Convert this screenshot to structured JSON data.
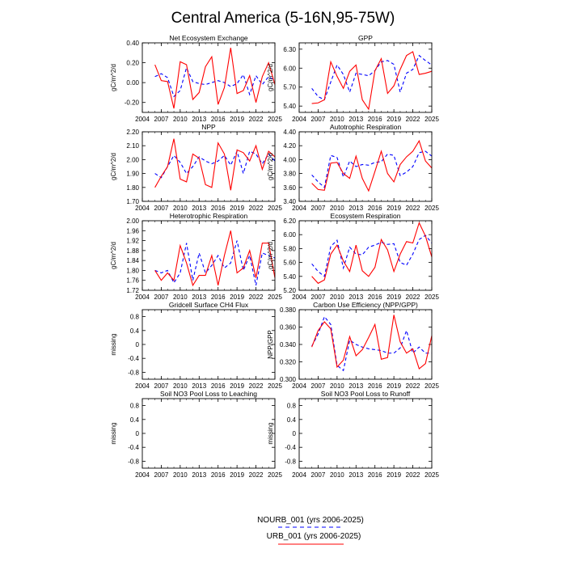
{
  "figure": {
    "title": "Central America (5-16N,95-75W)",
    "legend": [
      {
        "label": "NOURB_001 (yrs 2006-2025)",
        "color": "#0000ff",
        "dash": true
      },
      {
        "label": "URB_001 (yrs 2006-2025)",
        "color": "#ff0000",
        "dash": false
      }
    ]
  },
  "chart_data": [
    {
      "type": "line",
      "title": "Net Ecosystem Exchange",
      "ylabel": "gC/m^2/d",
      "xlim": [
        2004,
        2025
      ],
      "ylim": [
        -0.3,
        0.4
      ],
      "xticks": [
        2004,
        2007,
        2010,
        2013,
        2016,
        2019,
        2022,
        2025
      ],
      "yticks": [
        -0.2,
        0.0,
        0.2,
        0.4
      ],
      "ytick_labels": [
        "-0.20",
        "0.00",
        "0.20",
        "0.40"
      ],
      "x": [
        2006,
        2007,
        2008,
        2009,
        2010,
        2011,
        2012,
        2013,
        2014,
        2015,
        2016,
        2017,
        2018,
        2019,
        2020,
        2021,
        2022,
        2023,
        2024,
        2025
      ],
      "series": [
        {
          "name": "NOURB_001",
          "color": "#0000ff",
          "dash": true,
          "values": [
            0.06,
            0.09,
            0.05,
            -0.14,
            -0.08,
            0.15,
            0.01,
            -0.01,
            -0.02,
            0.0,
            0.02,
            0.0,
            -0.04,
            -0.01,
            0.08,
            -0.12,
            0.07,
            -0.02,
            0.06,
            0.02
          ]
        },
        {
          "name": "URB_001",
          "color": "#ff0000",
          "dash": false,
          "values": [
            0.18,
            0.02,
            0.01,
            -0.26,
            0.21,
            0.18,
            -0.17,
            -0.1,
            0.16,
            0.26,
            -0.22,
            -0.05,
            0.35,
            -0.11,
            -0.08,
            0.07,
            -0.2,
            0.06,
            0.2,
            -0.02
          ]
        }
      ]
    },
    {
      "type": "line",
      "title": "GPP",
      "ylabel": "gC/m^2/d",
      "xlim": [
        2004,
        2025
      ],
      "ylim": [
        5.3,
        6.4
      ],
      "xticks": [
        2004,
        2007,
        2010,
        2013,
        2016,
        2019,
        2022,
        2025
      ],
      "yticks": [
        5.4,
        5.7,
        6.0,
        6.3
      ],
      "ytick_labels": [
        "5.40",
        "5.70",
        "6.00",
        "6.30"
      ],
      "x": [
        2006,
        2007,
        2008,
        2009,
        2010,
        2011,
        2012,
        2013,
        2014,
        2015,
        2016,
        2017,
        2018,
        2019,
        2020,
        2021,
        2022,
        2023,
        2024,
        2025
      ],
      "series": [
        {
          "name": "NOURB_001",
          "color": "#0000ff",
          "dash": true,
          "values": [
            5.68,
            5.55,
            5.5,
            5.78,
            6.05,
            5.9,
            5.62,
            5.92,
            5.9,
            5.88,
            5.96,
            6.1,
            6.12,
            6.06,
            5.62,
            5.92,
            5.98,
            6.2,
            6.12,
            6.05
          ]
        },
        {
          "name": "URB_001",
          "color": "#ff0000",
          "dash": false,
          "values": [
            5.44,
            5.45,
            5.5,
            6.1,
            5.87,
            5.68,
            5.95,
            6.05,
            5.5,
            5.35,
            5.96,
            6.15,
            5.6,
            5.72,
            5.98,
            6.2,
            6.26,
            5.9,
            5.92,
            5.95
          ]
        }
      ]
    },
    {
      "type": "line",
      "title": "NPP",
      "ylabel": "gC/m^2/d",
      "xlim": [
        2004,
        2025
      ],
      "ylim": [
        1.7,
        2.2
      ],
      "xticks": [
        2004,
        2007,
        2010,
        2013,
        2016,
        2019,
        2022,
        2025
      ],
      "yticks": [
        1.7,
        1.8,
        1.9,
        2.0,
        2.1,
        2.2
      ],
      "ytick_labels": [
        "1.70",
        "1.80",
        "1.90",
        "2.00",
        "2.10",
        "2.20"
      ],
      "x": [
        2006,
        2007,
        2008,
        2009,
        2010,
        2011,
        2012,
        2013,
        2014,
        2015,
        2016,
        2017,
        2018,
        2019,
        2020,
        2021,
        2022,
        2023,
        2024,
        2025
      ],
      "series": [
        {
          "name": "NOURB_001",
          "color": "#0000ff",
          "dash": true,
          "values": [
            1.9,
            1.87,
            1.95,
            2.03,
            1.98,
            1.9,
            1.95,
            2.02,
            1.99,
            1.97,
            1.99,
            2.03,
            1.96,
            2.06,
            1.9,
            2.06,
            2.04,
            1.97,
            2.04,
            1.99
          ]
        },
        {
          "name": "URB_001",
          "color": "#ff0000",
          "dash": false,
          "values": [
            1.8,
            1.88,
            1.95,
            2.15,
            1.86,
            1.84,
            2.04,
            2.01,
            1.82,
            1.8,
            2.12,
            2.04,
            1.78,
            2.07,
            2.05,
            1.99,
            2.1,
            1.93,
            2.06,
            2.02
          ]
        }
      ]
    },
    {
      "type": "line",
      "title": "Autotrophic Respiration",
      "ylabel": "gC/m^2/d",
      "xlim": [
        2004,
        2025
      ],
      "ylim": [
        3.4,
        4.4
      ],
      "xticks": [
        2004,
        2007,
        2010,
        2013,
        2016,
        2019,
        2022,
        2025
      ],
      "yticks": [
        3.4,
        3.6,
        3.8,
        4.0,
        4.2,
        4.4
      ],
      "ytick_labels": [
        "3.40",
        "3.60",
        "3.80",
        "4.00",
        "4.20",
        "4.40"
      ],
      "x": [
        2006,
        2007,
        2008,
        2009,
        2010,
        2011,
        2012,
        2013,
        2014,
        2015,
        2016,
        2017,
        2018,
        2019,
        2020,
        2021,
        2022,
        2023,
        2024,
        2025
      ],
      "series": [
        {
          "name": "NOURB_001",
          "color": "#0000ff",
          "dash": true,
          "values": [
            3.78,
            3.68,
            3.6,
            4.06,
            4.03,
            3.75,
            3.98,
            3.9,
            3.93,
            3.92,
            3.96,
            3.97,
            4.08,
            4.06,
            3.77,
            3.82,
            3.9,
            4.1,
            4.12,
            4.05
          ]
        },
        {
          "name": "URB_001",
          "color": "#ff0000",
          "dash": false,
          "values": [
            3.66,
            3.57,
            3.56,
            3.95,
            3.96,
            3.8,
            3.73,
            4.05,
            3.73,
            3.55,
            3.83,
            4.12,
            3.8,
            3.68,
            3.93,
            4.04,
            4.12,
            4.27,
            3.98,
            3.88
          ]
        }
      ]
    },
    {
      "type": "line",
      "title": "Heterotrophic Respiration",
      "ylabel": "gC/m^2/d",
      "xlim": [
        2004,
        2025
      ],
      "ylim": [
        1.72,
        2.0
      ],
      "xticks": [
        2004,
        2007,
        2010,
        2013,
        2016,
        2019,
        2022,
        2025
      ],
      "yticks": [
        1.72,
        1.76,
        1.8,
        1.84,
        1.88,
        1.92,
        1.96,
        2.0
      ],
      "ytick_labels": [
        "1.72",
        "1.76",
        "1.80",
        "1.84",
        "1.88",
        "1.92",
        "1.96",
        "2.00"
      ],
      "x": [
        2006,
        2007,
        2008,
        2009,
        2010,
        2011,
        2012,
        2013,
        2014,
        2015,
        2016,
        2017,
        2018,
        2019,
        2020,
        2021,
        2022,
        2023,
        2024,
        2025
      ],
      "series": [
        {
          "name": "NOURB_001",
          "color": "#0000ff",
          "dash": true,
          "values": [
            1.8,
            1.79,
            1.8,
            1.75,
            1.79,
            1.91,
            1.76,
            1.87,
            1.79,
            1.82,
            1.86,
            1.81,
            1.83,
            1.92,
            1.8,
            1.86,
            1.74,
            1.87,
            1.86,
            1.85
          ]
        },
        {
          "name": "URB_001",
          "color": "#ff0000",
          "dash": false,
          "values": [
            1.8,
            1.76,
            1.79,
            1.76,
            1.9,
            1.83,
            1.74,
            1.78,
            1.78,
            1.86,
            1.74,
            1.86,
            1.96,
            1.79,
            1.81,
            1.88,
            1.77,
            1.91,
            1.91,
            1.77
          ]
        }
      ]
    },
    {
      "type": "line",
      "title": "Ecosystem Respiration",
      "ylabel": "gC/m^2/d",
      "xlim": [
        2004,
        2025
      ],
      "ylim": [
        5.2,
        6.2
      ],
      "xticks": [
        2004,
        2007,
        2010,
        2013,
        2016,
        2019,
        2022,
        2025
      ],
      "yticks": [
        5.2,
        5.4,
        5.6,
        5.8,
        6.0,
        6.2
      ],
      "ytick_labels": [
        "5.20",
        "5.40",
        "5.60",
        "5.80",
        "6.00",
        "6.20"
      ],
      "x": [
        2006,
        2007,
        2008,
        2009,
        2010,
        2011,
        2012,
        2013,
        2014,
        2015,
        2016,
        2017,
        2018,
        2019,
        2020,
        2021,
        2022,
        2023,
        2024,
        2025
      ],
      "series": [
        {
          "name": "NOURB_001",
          "color": "#0000ff",
          "dash": true,
          "values": [
            5.58,
            5.47,
            5.4,
            5.83,
            5.92,
            5.52,
            5.82,
            5.72,
            5.71,
            5.82,
            5.85,
            5.89,
            5.86,
            5.87,
            5.6,
            5.56,
            5.72,
            5.93,
            5.99,
            5.88
          ]
        },
        {
          "name": "URB_001",
          "color": "#ff0000",
          "dash": false,
          "values": [
            5.4,
            5.3,
            5.35,
            5.72,
            5.85,
            5.62,
            5.47,
            5.85,
            5.48,
            5.4,
            5.53,
            5.93,
            5.78,
            5.47,
            5.72,
            5.9,
            5.88,
            6.17,
            5.98,
            5.68
          ]
        }
      ]
    },
    {
      "type": "line",
      "title": "Gridcell Surface CH4 Flux",
      "ylabel": "missing",
      "xlim": [
        2004,
        2025
      ],
      "ylim": [
        -1.0,
        1.0
      ],
      "xticks": [
        2004,
        2007,
        2010,
        2013,
        2016,
        2019,
        2022,
        2025
      ],
      "yticks": [
        -0.8,
        -0.4,
        0.0,
        0.4,
        0.8
      ],
      "ytick_labels": [
        "-0.8",
        "-0.4",
        "0",
        "0.4",
        "0.8"
      ],
      "x": [],
      "series": []
    },
    {
      "type": "line",
      "title": "Carbon Use Efficiency (NPP/GPP)",
      "ylabel": "NPP/GPP",
      "xlim": [
        2004,
        2025
      ],
      "ylim": [
        0.3,
        0.38
      ],
      "xticks": [
        2004,
        2007,
        2010,
        2013,
        2016,
        2019,
        2022,
        2025
      ],
      "yticks": [
        0.3,
        0.32,
        0.34,
        0.36,
        0.38
      ],
      "ytick_labels": [
        "0.300",
        "0.320",
        "0.340",
        "0.360",
        "0.380"
      ],
      "x": [
        2006,
        2007,
        2008,
        2009,
        2010,
        2011,
        2012,
        2013,
        2014,
        2015,
        2016,
        2017,
        2018,
        2019,
        2020,
        2021,
        2022,
        2023,
        2024,
        2025
      ],
      "series": [
        {
          "name": "NOURB_001",
          "color": "#0000ff",
          "dash": true,
          "values": [
            0.338,
            0.352,
            0.372,
            0.363,
            0.316,
            0.31,
            0.345,
            0.34,
            0.337,
            0.335,
            0.334,
            0.333,
            0.33,
            0.33,
            0.336,
            0.356,
            0.33,
            0.337,
            0.33,
            0.33
          ]
        },
        {
          "name": "URB_001",
          "color": "#ff0000",
          "dash": false,
          "values": [
            0.337,
            0.356,
            0.366,
            0.358,
            0.314,
            0.322,
            0.349,
            0.327,
            0.334,
            0.348,
            0.363,
            0.323,
            0.325,
            0.374,
            0.343,
            0.33,
            0.335,
            0.312,
            0.318,
            0.35
          ]
        }
      ]
    },
    {
      "type": "line",
      "title": "Soil NO3 Pool Loss to Leaching",
      "ylabel": "missing",
      "xlim": [
        2004,
        2025
      ],
      "ylim": [
        -1.0,
        1.0
      ],
      "xticks": [
        2004,
        2007,
        2010,
        2013,
        2016,
        2019,
        2022,
        2025
      ],
      "yticks": [
        -0.8,
        -0.4,
        0.0,
        0.4,
        0.8
      ],
      "ytick_labels": [
        "-0.8",
        "-0.4",
        "0",
        "0.4",
        "0.8"
      ],
      "x": [],
      "series": []
    },
    {
      "type": "line",
      "title": "Soil NO3 Pool Loss to Runoff",
      "ylabel": "missing",
      "xlim": [
        2004,
        2025
      ],
      "ylim": [
        -1.0,
        1.0
      ],
      "xticks": [
        2004,
        2007,
        2010,
        2013,
        2016,
        2019,
        2022,
        2025
      ],
      "yticks": [
        -0.8,
        -0.4,
        0.0,
        0.4,
        0.8
      ],
      "ytick_labels": [
        "-0.8",
        "-0.4",
        "0",
        "0.4",
        "0.8"
      ],
      "x": [],
      "series": []
    }
  ]
}
